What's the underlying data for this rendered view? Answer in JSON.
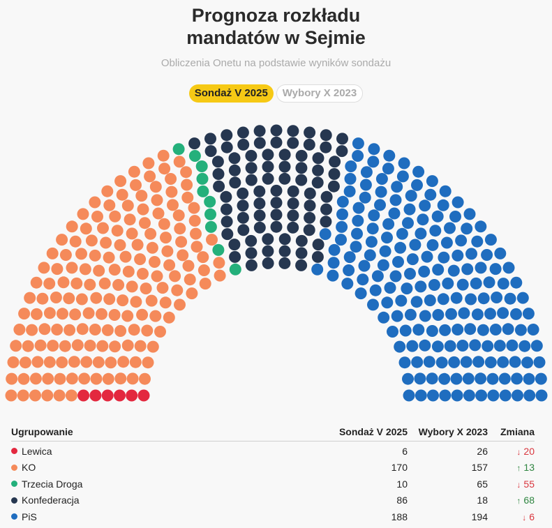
{
  "header": {
    "title_line1": "Prognoza rozkładu",
    "title_line2": "mandatów w Sejmie",
    "subtitle": "Obliczenia Onetu na podstawie wyników sondażu"
  },
  "tabs": [
    {
      "label": "Sondaż V 2025",
      "active": true
    },
    {
      "label": "Wybory X 2023",
      "active": false
    }
  ],
  "table": {
    "headers": {
      "party": "Ugrupowanie",
      "poll": "Sondaż V 2025",
      "election": "Wybory X 2023",
      "change": "Zmiana"
    },
    "rows": [
      {
        "party": "Lewica",
        "poll": "6",
        "election": "26",
        "change": "20",
        "direction": "down",
        "color": "#e3283f"
      },
      {
        "party": "KO",
        "poll": "170",
        "election": "157",
        "change": "13",
        "direction": "up",
        "color": "#f58a5a"
      },
      {
        "party": "Trzecia Droga",
        "poll": "10",
        "election": "65",
        "change": "55",
        "direction": "down",
        "color": "#24b07b"
      },
      {
        "party": "Konfederacja",
        "poll": "86",
        "election": "18",
        "change": "68",
        "direction": "up",
        "color": "#263750"
      },
      {
        "party": "PiS",
        "poll": "188",
        "election": "194",
        "change": "6",
        "direction": "down",
        "color": "#1f6dbf"
      }
    ]
  },
  "chart_data": {
    "type": "parliament",
    "total_seats": 460,
    "series": [
      {
        "name": "Lewica",
        "value": 6,
        "color": "#e3283f"
      },
      {
        "name": "KO",
        "value": 170,
        "color": "#f58a5a"
      },
      {
        "name": "Trzecia Droga",
        "value": 10,
        "color": "#24b07b"
      },
      {
        "name": "Konfederacja",
        "value": 86,
        "color": "#263750"
      },
      {
        "name": "PiS",
        "value": 188,
        "color": "#1f6dbf"
      }
    ]
  }
}
